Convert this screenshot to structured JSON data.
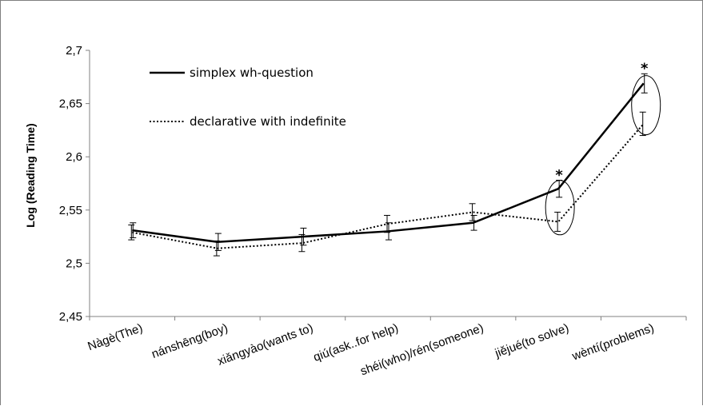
{
  "chart_data": {
    "type": "line",
    "title": "",
    "xlabel": "",
    "ylabel": "Log (Reading Time)",
    "ylim": [
      2.45,
      2.7
    ],
    "yticks": [
      "2,45",
      "2,5",
      "2,55",
      "2,6",
      "2,65",
      "2,7"
    ],
    "grid": false,
    "legend_position": "top-left",
    "categories": [
      "Nàgè(The)",
      "nánshēng(boy)",
      "xiǎngyào(wants to)",
      "qiú(ask..for help)",
      "shéi(who)/rén(someone)",
      "jiějué(to solve)",
      "wèntí(problems)"
    ],
    "series": [
      {
        "name": "simplex wh-question",
        "style": "solid",
        "color": "#000000",
        "values": [
          2.531,
          2.52,
          2.525,
          2.53,
          2.538,
          2.57,
          2.669
        ],
        "errors": [
          0.007,
          0.008,
          0.008,
          0.008,
          0.007,
          0.008,
          0.009
        ]
      },
      {
        "name": "declarative with indefinite",
        "style": "dotted",
        "color": "#000000",
        "values": [
          2.529,
          2.514,
          2.519,
          2.537,
          2.548,
          2.539,
          2.631
        ],
        "errors": [
          0.007,
          0.007,
          0.008,
          0.008,
          0.008,
          0.009,
          0.011
        ]
      }
    ],
    "annotations": [
      {
        "category_index": 5,
        "label": "*"
      },
      {
        "category_index": 6,
        "label": "*"
      }
    ]
  }
}
